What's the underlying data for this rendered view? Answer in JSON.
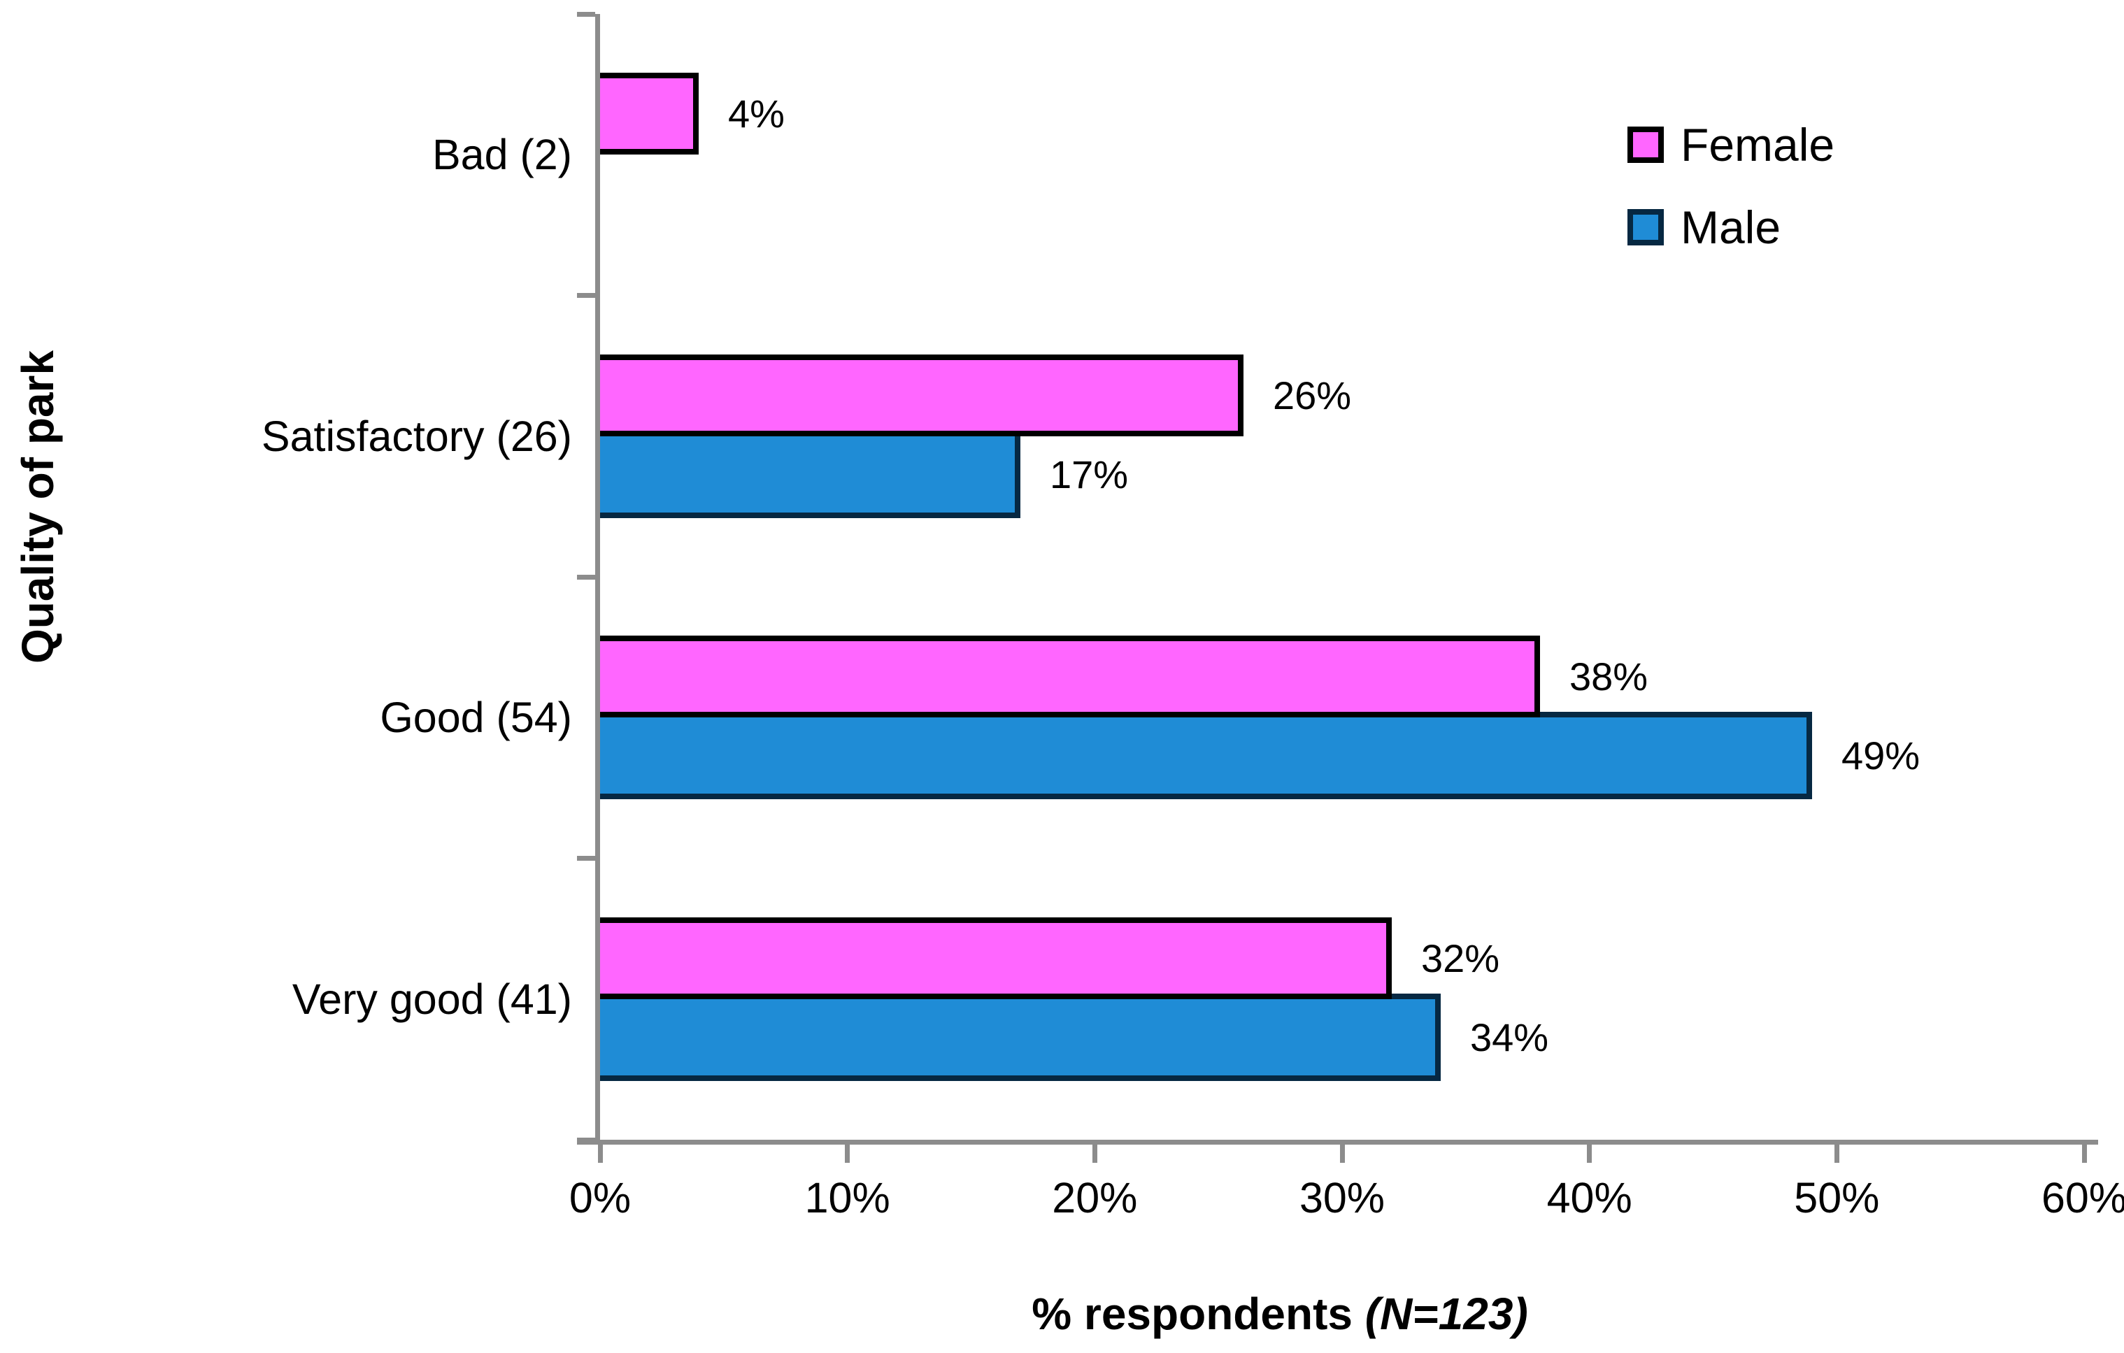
{
  "chart_data": {
    "type": "bar",
    "orientation": "horizontal",
    "ylabel": "Quality of park",
    "xlabel_main": "% respondents ",
    "xlabel_note": "(N=123)",
    "categories": [
      "Bad (2)",
      "Satisfactory (26)",
      "Good (54)",
      "Very good (41)"
    ],
    "series": [
      {
        "name": "Female",
        "values": [
          4,
          26,
          38,
          32
        ],
        "labels": [
          "4%",
          "26%",
          "38%",
          "32%"
        ],
        "fill": "#FF66FF",
        "border": "#000000"
      },
      {
        "name": "Male",
        "values": [
          0,
          17,
          49,
          34
        ],
        "labels": [
          "",
          "17%",
          "49%",
          "34%"
        ],
        "fill": "#1F8CD6",
        "border": "#062842"
      }
    ],
    "xlim": [
      0,
      60
    ],
    "xticks": [
      "0%",
      "10%",
      "20%",
      "30%",
      "40%",
      "50%",
      "60%"
    ],
    "legend_position": "top-right",
    "grid": false
  },
  "colors": {
    "axis": "#8C8C8C",
    "text": "#000000",
    "background": "#FFFFFF"
  }
}
